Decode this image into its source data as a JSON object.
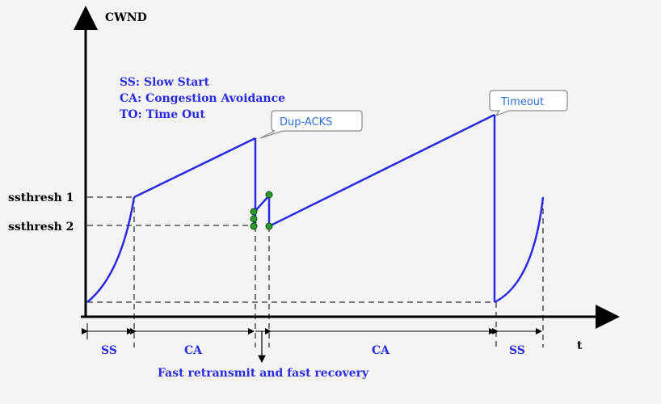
{
  "axes": {
    "y_label": "CWND",
    "x_label": "t",
    "y_ticks": [
      "ssthresh 1",
      "ssthresh 2"
    ]
  },
  "legend": [
    "SS: Slow Start",
    "CA: Congestion Avoidance",
    "TO: Time Out"
  ],
  "callouts": {
    "dup_acks": "Dup-ACKS",
    "timeout": "Timeout"
  },
  "phases": [
    "SS",
    "CA",
    "CA",
    "SS"
  ],
  "bottom_note": "Fast retransmit and fast recovery",
  "colors": {
    "curve": "#2a2ae0",
    "dot_fill": "#2e9a2e",
    "callout_text": "#2a6fe0"
  }
}
